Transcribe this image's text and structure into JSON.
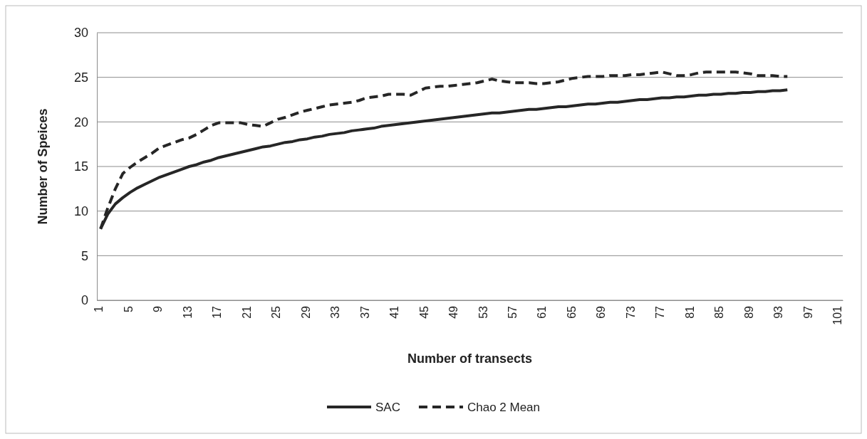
{
  "chart_data": {
    "type": "line",
    "xlabel": "Number of transects",
    "ylabel": "Number of Speices",
    "categories": [
      "1",
      null,
      null,
      null,
      "5",
      null,
      null,
      null,
      "9",
      null,
      null,
      null,
      "13",
      null,
      null,
      null,
      "17",
      null,
      null,
      null,
      "21",
      null,
      null,
      null,
      "25",
      null,
      null,
      null,
      "29",
      null,
      null,
      null,
      "33",
      null,
      null,
      null,
      "37",
      null,
      null,
      null,
      "41",
      null,
      null,
      null,
      "45",
      null,
      null,
      null,
      "49",
      null,
      null,
      null,
      "53",
      null,
      null,
      null,
      "57",
      null,
      null,
      null,
      "61",
      null,
      null,
      null,
      "65",
      null,
      null,
      null,
      "69",
      null,
      null,
      null,
      "73",
      null,
      null,
      null,
      "77",
      null,
      null,
      null,
      "81",
      null,
      null,
      null,
      "85",
      null,
      null,
      null,
      "89",
      null,
      null,
      null,
      "93",
      null,
      null,
      null,
      "97",
      null,
      null,
      null,
      "101"
    ],
    "ylim": [
      0,
      30
    ],
    "yticks": [
      0,
      5,
      10,
      15,
      20,
      25,
      30
    ],
    "grid": "y",
    "legend": "bottom",
    "marker": "none",
    "series": [
      {
        "name": "SAC",
        "color": "#262626",
        "line_style": "solid",
        "values": [
          8.0,
          9.7,
          10.8,
          11.5,
          12.1,
          12.6,
          13.0,
          13.4,
          13.8,
          14.1,
          14.4,
          14.7,
          15.0,
          15.2,
          15.5,
          15.7,
          16.0,
          16.2,
          16.4,
          16.6,
          16.8,
          17.0,
          17.2,
          17.3,
          17.5,
          17.7,
          17.8,
          18.0,
          18.1,
          18.3,
          18.4,
          18.6,
          18.7,
          18.8,
          19.0,
          19.1,
          19.2,
          19.3,
          19.5,
          19.6,
          19.7,
          19.8,
          19.9,
          20.0,
          20.1,
          20.2,
          20.3,
          20.4,
          20.5,
          20.6,
          20.7,
          20.8,
          20.9,
          21.0,
          21.0,
          21.1,
          21.2,
          21.3,
          21.4,
          21.4,
          21.5,
          21.6,
          21.7,
          21.7,
          21.8,
          21.9,
          22.0,
          22.0,
          22.1,
          22.2,
          22.2,
          22.3,
          22.4,
          22.5,
          22.5,
          22.6,
          22.7,
          22.7,
          22.8,
          22.8,
          22.9,
          23.0,
          23.0,
          23.1,
          23.1,
          23.2,
          23.2,
          23.3,
          23.3,
          23.4,
          23.4,
          23.5,
          23.5,
          23.6,
          null,
          null,
          null,
          null,
          null,
          null,
          null
        ]
      },
      {
        "name": "Chao 2 Mean",
        "color": "#262626",
        "line_style": "dashed",
        "values": [
          8.0,
          10.4,
          12.5,
          14.2,
          14.9,
          15.5,
          16.0,
          16.5,
          17.1,
          17.4,
          17.7,
          18.0,
          18.2,
          18.6,
          19.1,
          19.6,
          19.9,
          19.9,
          19.9,
          19.9,
          19.7,
          19.6,
          19.5,
          19.9,
          20.3,
          20.5,
          20.8,
          21.1,
          21.3,
          21.5,
          21.7,
          21.9,
          22.0,
          22.1,
          22.2,
          22.4,
          22.7,
          22.8,
          22.9,
          23.1,
          23.1,
          23.1,
          23.0,
          23.4,
          23.8,
          23.9,
          24.0,
          24.0,
          24.1,
          24.2,
          24.3,
          24.4,
          24.6,
          24.8,
          24.6,
          24.5,
          24.4,
          24.4,
          24.4,
          24.3,
          24.3,
          24.4,
          24.5,
          24.7,
          24.9,
          25.0,
          25.1,
          25.1,
          25.1,
          25.2,
          25.2,
          25.2,
          25.3,
          25.3,
          25.4,
          25.5,
          25.6,
          25.4,
          25.2,
          25.2,
          25.3,
          25.5,
          25.6,
          25.6,
          25.6,
          25.6,
          25.6,
          25.5,
          25.4,
          25.2,
          25.2,
          25.2,
          25.1,
          25.1,
          null,
          null,
          null,
          null,
          null,
          null,
          null
        ]
      }
    ]
  }
}
